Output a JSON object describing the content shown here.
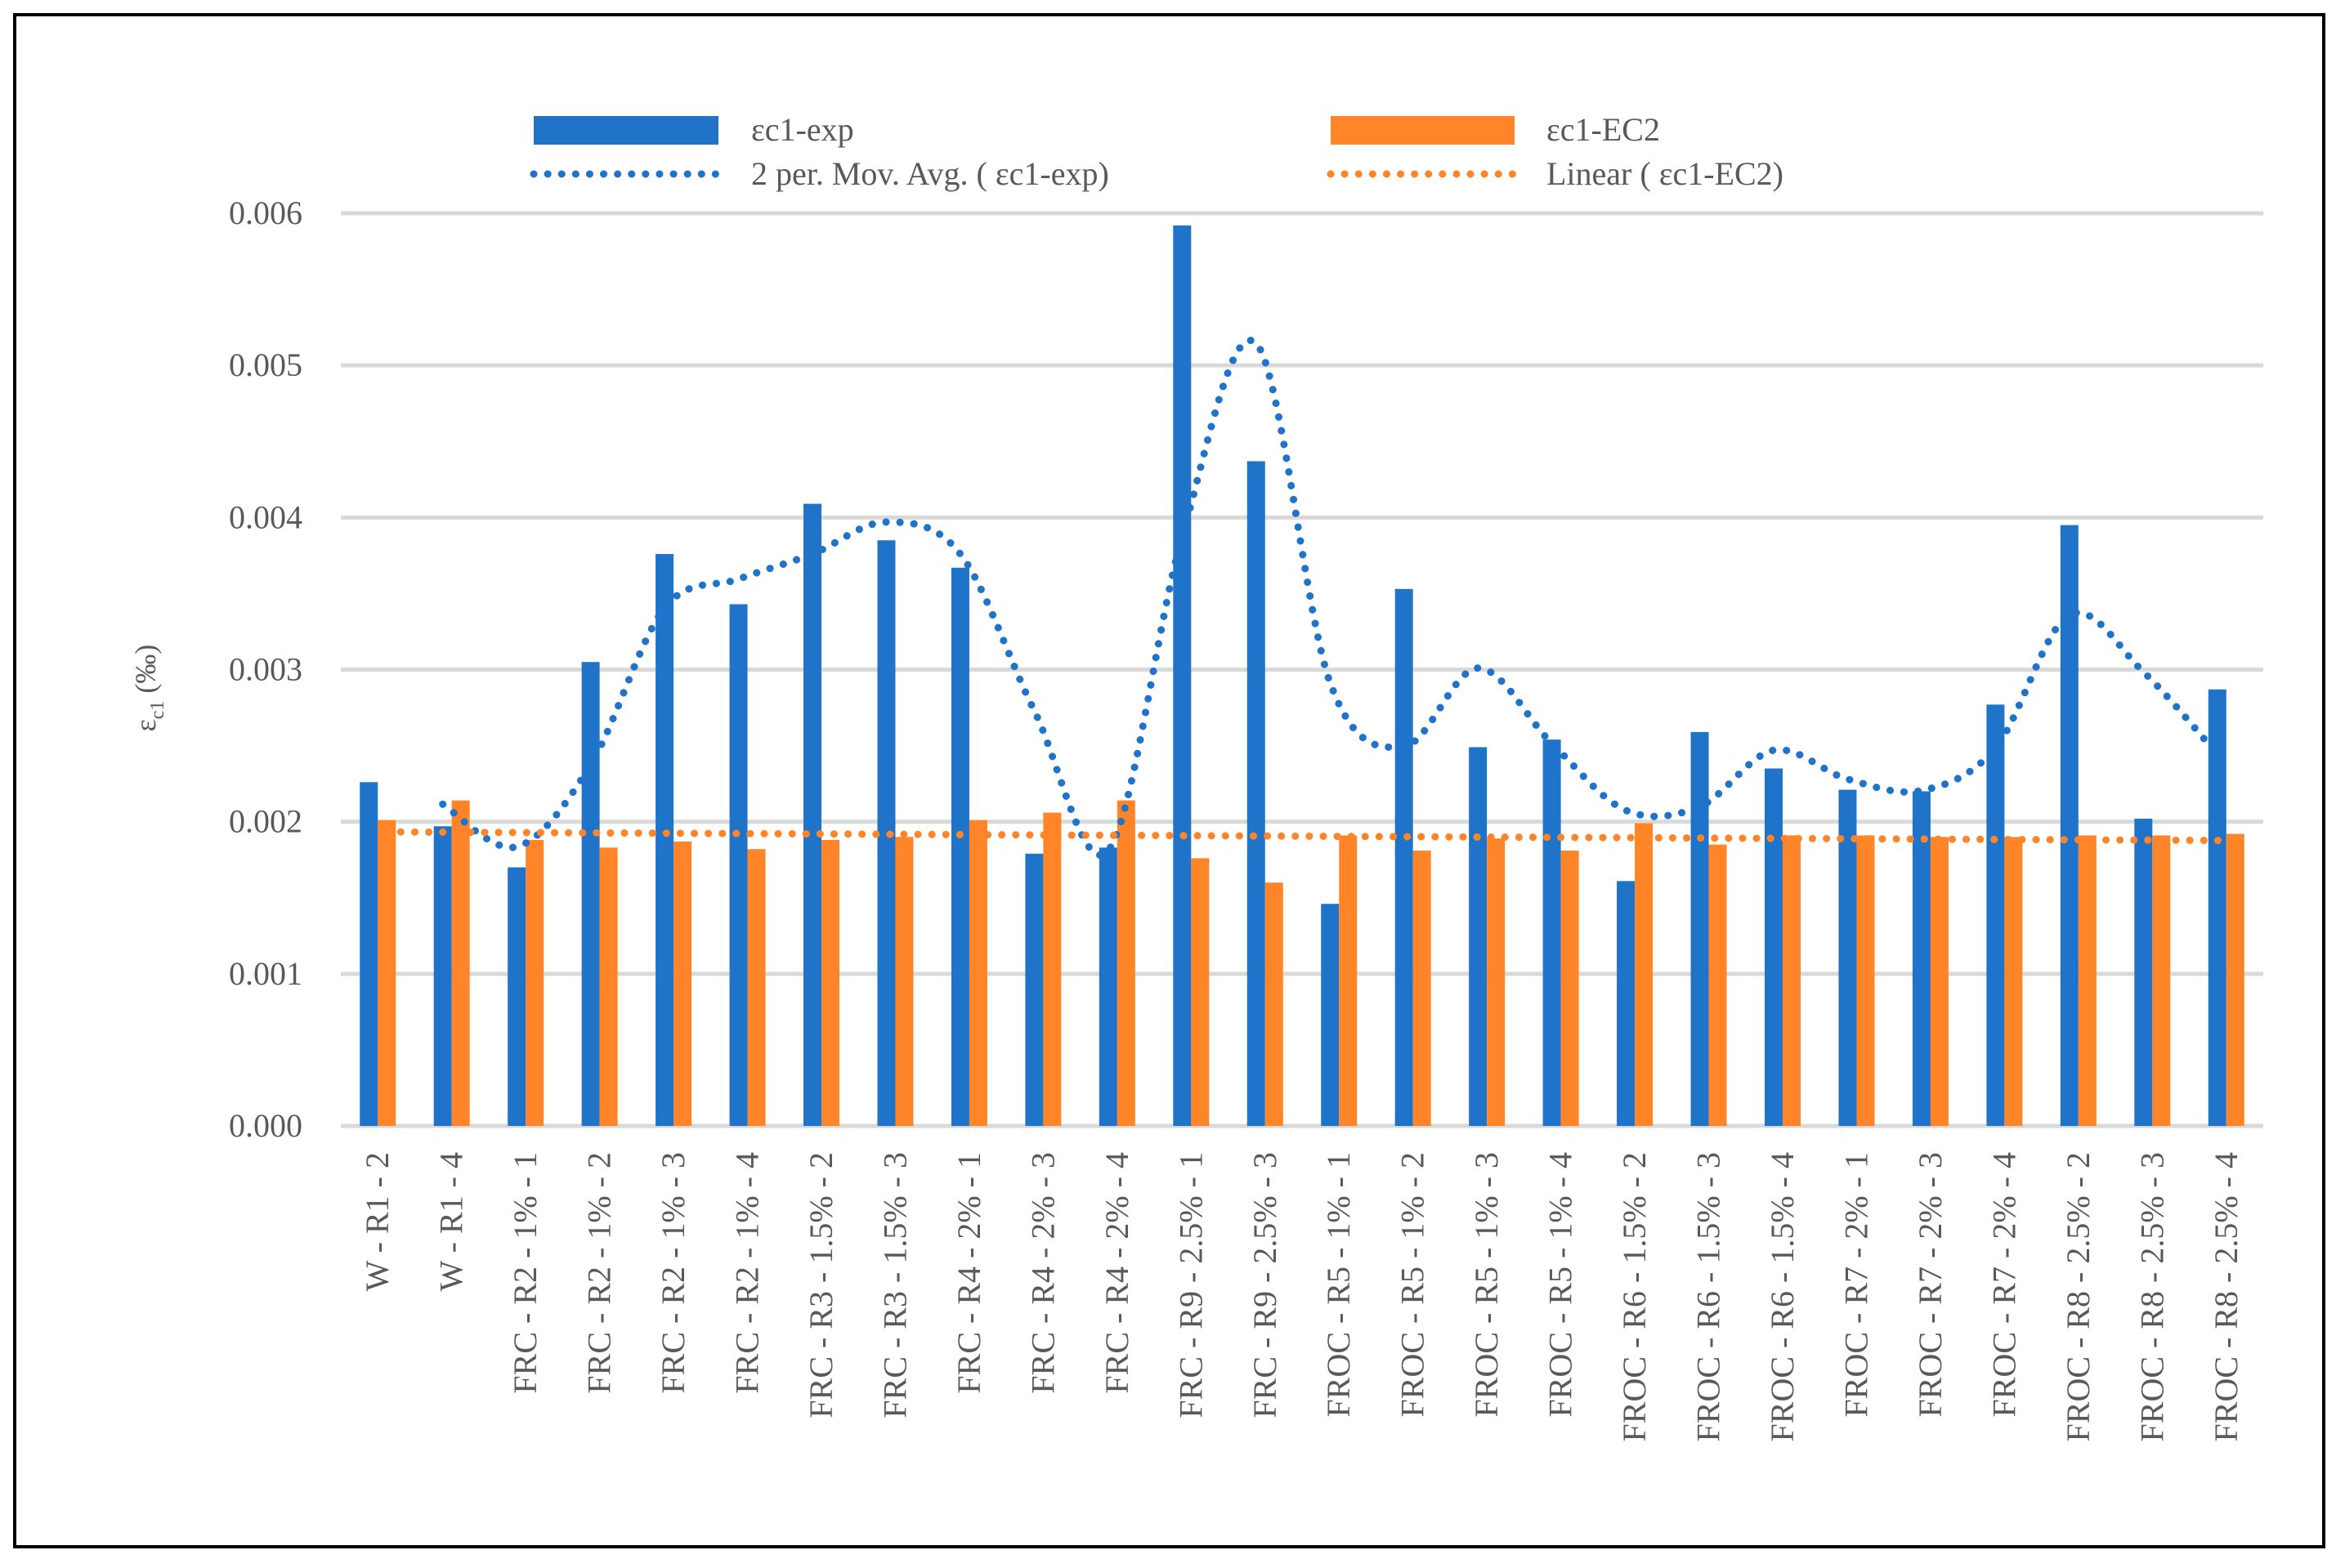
{
  "chart_data": {
    "type": "bar",
    "title": "",
    "xlabel": "",
    "ylabel_main": "ε",
    "ylabel_sub": "c1",
    "ylabel_unit": " (‰)",
    "ylim": [
      0,
      0.006
    ],
    "yticks": [
      "0.000",
      "0.001",
      "0.002",
      "0.003",
      "0.004",
      "0.005",
      "0.006"
    ],
    "grid": true,
    "legend_position": "top",
    "colors": {
      "exp": "#1F73C8",
      "ec2": "#FF8528",
      "grid": "#D9D9D9",
      "axis_text": "#595959"
    },
    "categories": [
      "W - R1 - 2",
      "W - R1 - 4",
      "FRC - R2 - 1% - 1",
      "FRC - R2 - 1% - 2",
      "FRC - R2 - 1% - 3",
      "FRC - R2 - 1% - 4",
      "FRC - R3 - 1.5% - 2",
      "FRC - R3 - 1.5% - 3",
      "FRC - R4 - 2% - 1",
      "FRC - R4 - 2% - 3",
      "FRC - R4 - 2% - 4",
      "FRC - R9 - 2.5% - 1",
      "FRC - R9 - 2.5% - 3",
      "FROC - R5 - 1% - 1",
      "FROC - R5 - 1% - 2",
      "FROC - R5 - 1% - 3",
      "FROC - R5 - 1% - 4",
      "FROC - R6 - 1.5% - 2",
      "FROC - R6 - 1.5% - 3",
      "FROC - R6 - 1.5% - 4",
      "FROC - R7 - 2% - 1",
      "FROC - R7 - 2% - 3",
      "FROC - R7 - 2% - 4",
      "FROC - R8 - 2.5% - 2",
      "FROC - R8 - 2.5% - 3",
      "FROC - R8 - 2.5% - 4"
    ],
    "series": [
      {
        "name": "εc1-exp",
        "values": [
          0.00226,
          0.00197,
          0.0017,
          0.00305,
          0.00376,
          0.00343,
          0.00409,
          0.00385,
          0.00367,
          0.00179,
          0.00183,
          0.00592,
          0.00437,
          0.00146,
          0.00353,
          0.00249,
          0.00254,
          0.00161,
          0.00259,
          0.00235,
          0.00221,
          0.0022,
          0.00277,
          0.00395,
          0.00202,
          0.00287
        ]
      },
      {
        "name": "εc1-EC2",
        "values": [
          0.00201,
          0.00214,
          0.00188,
          0.00183,
          0.00187,
          0.00182,
          0.00188,
          0.0019,
          0.00201,
          0.00206,
          0.00214,
          0.00176,
          0.0016,
          0.00191,
          0.00181,
          0.00189,
          0.00181,
          0.00199,
          0.00185,
          0.00191,
          0.00191,
          0.0019,
          0.0019,
          0.00191,
          0.00191,
          0.00192
        ]
      }
    ],
    "trendlines": [
      {
        "name": "2 per. Mov. Avg. ( εc1-exp)",
        "type": "moving_average",
        "period": 2,
        "of_series": "εc1-exp"
      },
      {
        "name": "Linear ( εc1-EC2)",
        "type": "linear",
        "of_series": "εc1-EC2"
      }
    ],
    "legend": {
      "exp_label": "εc1-exp",
      "ec2_label": "εc1-EC2",
      "mavg_label": "2 per. Mov. Avg. ( εc1-exp)",
      "linear_label": "Linear ( εc1-EC2)"
    }
  }
}
